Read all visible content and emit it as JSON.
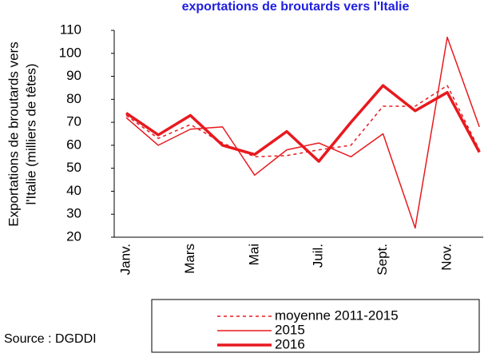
{
  "chart_data": {
    "type": "line",
    "title": "exportations de broutards vers l'Italie",
    "y_label": [
      "Exportations de broutards vers",
      "l'Italie (milliers de têtes)"
    ],
    "source": "Source : DGDDI",
    "categories": [
      "Janv.",
      null,
      "Mars",
      null,
      "Mai",
      null,
      "Juil.",
      null,
      "Sept.",
      null,
      "Nov.",
      null
    ],
    "series": [
      {
        "name": "moyenne 2011-2015",
        "color": "#e8191e",
        "dash": true,
        "width": 1.5,
        "values": [
          73,
          63,
          69,
          61,
          55,
          55.5,
          58,
          60,
          77,
          77,
          86,
          58
        ]
      },
      {
        "name": "2015",
        "color": "#e8191e",
        "dash": false,
        "width": 1.5,
        "values": [
          72,
          60,
          67,
          68,
          47,
          58,
          61,
          55,
          65,
          24,
          107,
          68
        ]
      },
      {
        "name": "2016",
        "color": "#e8191e",
        "dash": false,
        "width": 3.5,
        "values": [
          74,
          64.5,
          73,
          60,
          56,
          66,
          53,
          70,
          86,
          75,
          83,
          57
        ]
      }
    ],
    "ylim": [
      20,
      110
    ],
    "yticks": [
      20,
      30,
      40,
      50,
      60,
      70,
      80,
      90,
      100,
      110
    ]
  }
}
